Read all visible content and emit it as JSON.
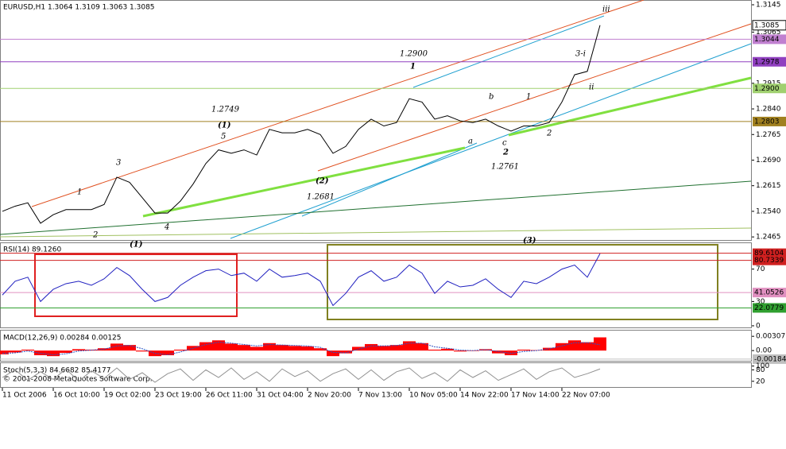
{
  "chart_data": [
    {
      "type": "line",
      "title": "EURUSD,H1 1.3064 1.3109 1.3063 1.3085",
      "color": "#000000",
      "categories": [
        "11 Oct 2006",
        null,
        null,
        null,
        "16 Oct 10:00",
        null,
        null,
        null,
        "19 Oct 02:00",
        null,
        null,
        null,
        "23 Oct 19:00",
        null,
        null,
        null,
        "26 Oct 11:00",
        null,
        null,
        null,
        "31 Oct 04:00",
        null,
        null,
        null,
        "2 Nov 20:00",
        null,
        null,
        null,
        "7 Nov 13:00",
        null,
        null,
        null,
        "10 Nov 05:00",
        null,
        null,
        null,
        "14 Nov 22:00",
        null,
        null,
        null,
        "17 Nov 14:00",
        null,
        null,
        null,
        "22 Nov 07:00",
        null,
        null,
        null
      ],
      "values": [
        1.254,
        1.2555,
        1.2565,
        1.2505,
        1.253,
        1.2545,
        1.2545,
        1.2545,
        1.256,
        1.264,
        1.2625,
        1.258,
        1.2535,
        1.2535,
        1.257,
        1.262,
        1.268,
        1.272,
        1.271,
        1.272,
        1.2705,
        1.278,
        1.277,
        1.277,
        1.278,
        1.2765,
        1.271,
        1.273,
        1.278,
        1.281,
        1.279,
        1.28,
        1.287,
        1.286,
        1.281,
        1.282,
        1.2805,
        1.28,
        1.281,
        1.279,
        1.2775,
        1.279,
        1.279,
        1.28,
        1.286,
        1.294,
        1.295,
        1.3085
      ],
      "ylim": [
        1.2456,
        1.3159
      ],
      "yticks": [
        {
          "value": 1.2465,
          "label": "1.2465"
        },
        {
          "value": 1.254,
          "label": "1.2540"
        },
        {
          "value": 1.2615,
          "label": "1.2615"
        },
        {
          "value": 1.269,
          "label": "1.2690"
        },
        {
          "value": 1.2765,
          "label": "1.2765"
        },
        {
          "value": 1.284,
          "label": "1.2840"
        },
        {
          "value": 1.2915,
          "label": "1.2915"
        },
        {
          "value": 1.3065,
          "label": "1.3065"
        },
        {
          "value": 1.3145,
          "label": "1.3145"
        }
      ],
      "current": {
        "value": 1.3085,
        "label": "1.3085"
      },
      "levels": [
        {
          "value": 1.3044,
          "label": "1.3044",
          "color": "#c080d0"
        },
        {
          "value": 1.2978,
          "label": "1.2978",
          "color": "#9040c0"
        },
        {
          "value": 1.29,
          "label": "1.2900",
          "color": "#a0d070"
        },
        {
          "value": 1.2803,
          "label": "1.2803",
          "color": "#a08020"
        }
      ],
      "annotations": [
        "iii",
        "3-i",
        "ii",
        "1",
        "b",
        "a",
        "c",
        "2",
        "2",
        "1.2900",
        "1",
        "1.2749",
        "(1)",
        "5",
        "3",
        "1",
        "2",
        "4",
        "(2)",
        "1.2681",
        "1.2761",
        "(1)",
        "(3)"
      ],
      "copyright": "© 2001-2008 MetaQuotes Software Corp."
    },
    {
      "type": "line",
      "title": "RSI(14) 89.1260",
      "color": "#2020c0",
      "values": [
        38,
        55,
        60,
        30,
        45,
        52,
        55,
        50,
        58,
        72,
        62,
        45,
        30,
        35,
        50,
        60,
        68,
        70,
        62,
        65,
        55,
        70,
        60,
        62,
        65,
        55,
        25,
        40,
        60,
        68,
        55,
        60,
        75,
        65,
        40,
        55,
        48,
        50,
        58,
        45,
        35,
        55,
        52,
        60,
        70,
        75,
        60,
        89.126
      ],
      "ylim": [
        -2,
        102
      ],
      "yticks": [
        0,
        30,
        70
      ],
      "levels": [
        {
          "value": 89.6104,
          "label": "89.6104",
          "color": "#d02020"
        },
        {
          "value": 80.7339,
          "label": "80.7339",
          "color": "#d02020"
        },
        {
          "value": 41.0526,
          "label": "41.0526",
          "color": "#e090c0"
        },
        {
          "value": 22.0779,
          "label": "22.0779",
          "color": "#30a030"
        }
      ]
    },
    {
      "type": "bar",
      "title": "MACD(12,26,9) 0.00284 0.00125",
      "color": "#ff0000",
      "values": [
        -0.0008,
        -0.0004,
        0.0002,
        -0.001,
        -0.0012,
        -0.0005,
        0.0003,
        0.0002,
        0.0005,
        0.0015,
        0.0012,
        -0.0002,
        -0.0012,
        -0.001,
        0.0002,
        0.001,
        0.0018,
        0.0022,
        0.0015,
        0.0012,
        0.0008,
        0.0016,
        0.0012,
        0.001,
        0.0009,
        0.0005,
        -0.0012,
        -0.0006,
        0.0008,
        0.0014,
        0.001,
        0.0012,
        0.002,
        0.0016,
        0.0002,
        0.0004,
        -0.0002,
        -0.0001,
        0.0003,
        -0.0006,
        -0.001,
        0.0002,
        0.0001,
        0.0006,
        0.0016,
        0.0022,
        0.0018,
        0.00284
      ],
      "signal": [
        -0.0006,
        -0.0005,
        -0.0001,
        -0.0006,
        -0.0009,
        -0.0007,
        -0.0001,
        0.0001,
        0.0003,
        0.001,
        0.0011,
        0.0004,
        -0.0006,
        -0.0009,
        -0.0003,
        0.0005,
        0.0013,
        0.0018,
        0.0016,
        0.0013,
        0.001,
        0.0013,
        0.0012,
        0.0011,
        0.001,
        0.0007,
        -0.0004,
        -0.0005,
        0.0003,
        0.001,
        0.001,
        0.0011,
        0.0016,
        0.0016,
        0.0008,
        0.0005,
        0.0001,
        0.0,
        0.0002,
        -0.0002,
        -0.0006,
        -0.0002,
        0.0,
        0.0004,
        0.001,
        0.0017,
        0.0017,
        0.00125
      ],
      "signal_color": "#3050c0",
      "ylim": [
        -0.0022,
        0.0043
      ],
      "yticks": [
        0.00307,
        {
          "value": 0,
          "label": "0.00"
        }
      ],
      "levels": [
        {
          "value": -0.00184,
          "label": "-0.00184",
          "color": "#c0c0c0"
        }
      ]
    },
    {
      "type": "line",
      "title": "Stoch(5,3,3) 84.6682 85.4177",
      "color": "#909090",
      "values": [
        40,
        80,
        25,
        70,
        30,
        85,
        20,
        75,
        35,
        90,
        30,
        65,
        15,
        60,
        85,
        25,
        80,
        40,
        90,
        30,
        70,
        20,
        85,
        45,
        75,
        20,
        60,
        85,
        30,
        80,
        25,
        70,
        90,
        35,
        65,
        20,
        80,
        40,
        75,
        25,
        55,
        85,
        30,
        70,
        90,
        40,
        60,
        84.6682
      ],
      "ylim": [
        -10,
        115
      ],
      "yticks": [
        20,
        80,
        100
      ]
    }
  ]
}
